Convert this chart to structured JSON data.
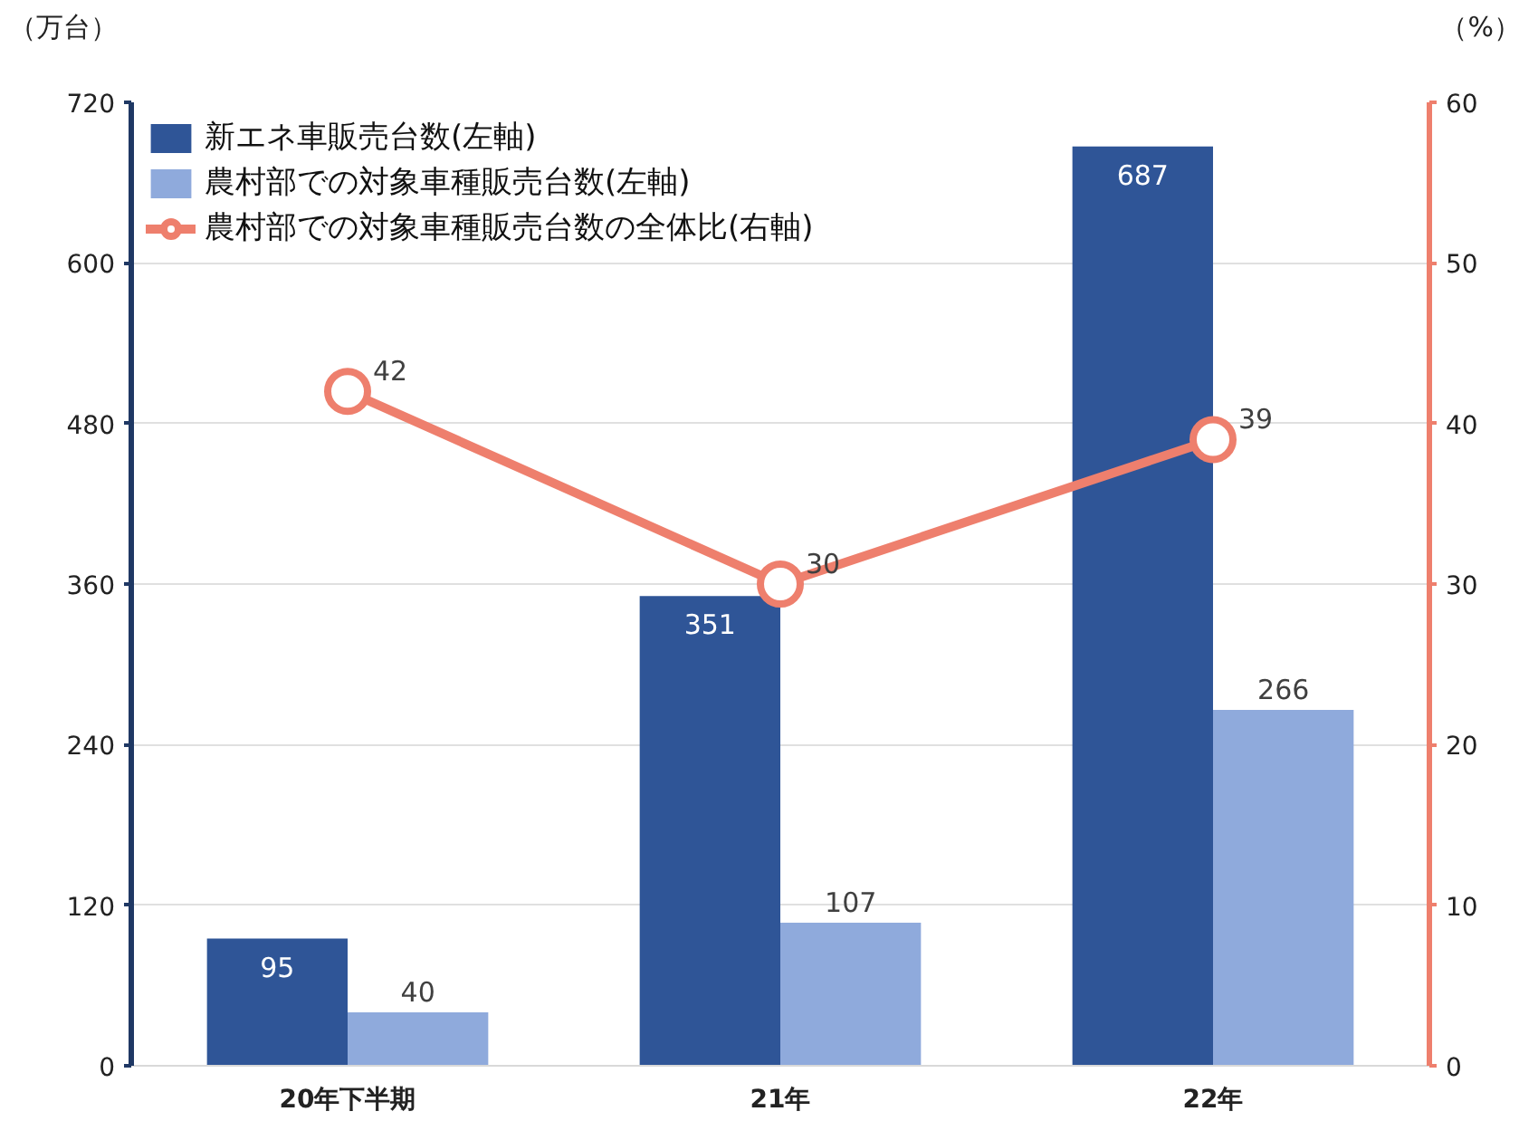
{
  "chart_data": {
    "type": "bar",
    "ylabel": "（万台）",
    "y2label": "（%）",
    "categories": [
      "20年下半期",
      "21年",
      "22年"
    ],
    "series": [
      {
        "name": "新エネ車販売台数(左軸)",
        "color": "#2f5597",
        "values": [
          95,
          351,
          687
        ]
      },
      {
        "name": "農村部での対象車種販売台数(左軸)",
        "color": "#8faadc",
        "values": [
          40,
          107,
          266
        ]
      },
      {
        "name": "農村部での対象車種販売台数の全体比(右軸)",
        "type": "line",
        "axis": "y2",
        "color": "#ee7f6d",
        "marker": "circle",
        "values": [
          42,
          30,
          39
        ]
      }
    ],
    "ylim": [
      0,
      720
    ],
    "yticks": [
      0,
      120,
      240,
      360,
      480,
      600,
      720
    ],
    "y2lim": [
      0,
      60
    ],
    "y2ticks": [
      0,
      10,
      20,
      30,
      40,
      50,
      60
    ],
    "grid": "y",
    "legend": "top left",
    "data_labels": true
  }
}
